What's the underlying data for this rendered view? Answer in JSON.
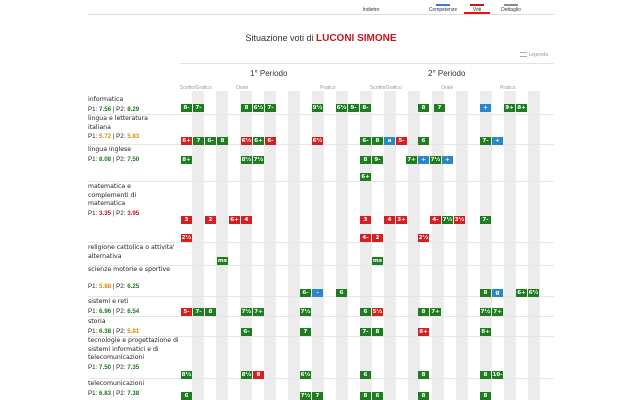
{
  "toolbar": {
    "indietro": "Indietro",
    "competenze": "Competenze",
    "voti": "Voti",
    "dettaglio": "Dettaglio"
  },
  "title": {
    "prefix": "Situazione voti di",
    "student": "LUCONI SIMONE"
  },
  "legenda": "Legenda",
  "periods": {
    "first": "1° Periodo",
    "second": "2° Periodo"
  },
  "columns": {
    "scritto": "Scritto/Grafico",
    "orale": "Orale",
    "pratico": "Pratico"
  },
  "subjects": [
    {
      "name": "informatica",
      "p1": "7.56",
      "p2": "8.29"
    },
    {
      "name": "lingua e letteratura italiana",
      "p1": "5.72",
      "p2": "5.83"
    },
    {
      "name": "lingua inglese",
      "p1": "8.08",
      "p2": "7.50"
    },
    {
      "name": "matematica e complementi di matematica",
      "p1": "3.35",
      "p2": "3.95"
    },
    {
      "name": "religione cattolica o attivita' alternativa",
      "p1": "",
      "p2": ""
    },
    {
      "name": "scienze motorie e sportive",
      "p1": "5.88",
      "p2": "6.25"
    },
    {
      "name": "sistemi e reti",
      "p1": "6.96",
      "p2": "6.54"
    },
    {
      "name": "storia",
      "p1": "6.38",
      "p2": "5.81"
    },
    {
      "name": "tecnologie e progettazione di sistemi informatici e di telecomunicazioni",
      "p1": "7.50",
      "p2": "7.35"
    },
    {
      "name": "telecomunicazioni",
      "p1": "6.83",
      "p2": "7.38"
    }
  ],
  "labels": {
    "p1": "P1:",
    "p2": "P2:",
    "sep": "|"
  },
  "grades": {
    "informatica": [
      "8-",
      "7-",
      "8",
      "6½",
      "7-",
      "9½",
      "6½",
      "9-",
      "8-",
      "8",
      "7",
      "+",
      "9+",
      "8+"
    ],
    "italiano": [
      "6+",
      "7",
      "6-",
      "8",
      "6½",
      "6+",
      "6-",
      "6½",
      "6-",
      "8",
      "a",
      "5-",
      "6",
      "7-",
      "+"
    ],
    "inglese": [
      "8+",
      "8½",
      "7½",
      "8",
      "9-",
      "6+",
      "7+",
      "+",
      "7½",
      "+"
    ],
    "matematica": [
      "3",
      "2",
      "6+",
      "4",
      "2½",
      "3",
      "4",
      "3+",
      "4-",
      "7½",
      "3½",
      "7-",
      "4-",
      "2",
      "2½"
    ],
    "religione": [
      "ms",
      "ms"
    ],
    "motorie": [
      "6-",
      "-",
      "6",
      "8",
      "g",
      "6+",
      "6½"
    ],
    "sistemi": [
      "5-",
      "7-",
      "8",
      "7½",
      "7+",
      "7½",
      "6",
      "5½",
      "8",
      "7+",
      "7½",
      "7+"
    ],
    "storia": [
      "6-",
      "7",
      "7-",
      "8",
      "8+",
      "8+"
    ],
    "tecnologie": [
      "8½",
      "8½",
      "8",
      "6½",
      "6",
      "8",
      "8",
      "10-"
    ],
    "telecom": [
      "6",
      "7½",
      "7",
      "8",
      "6",
      "8",
      "8"
    ]
  }
}
